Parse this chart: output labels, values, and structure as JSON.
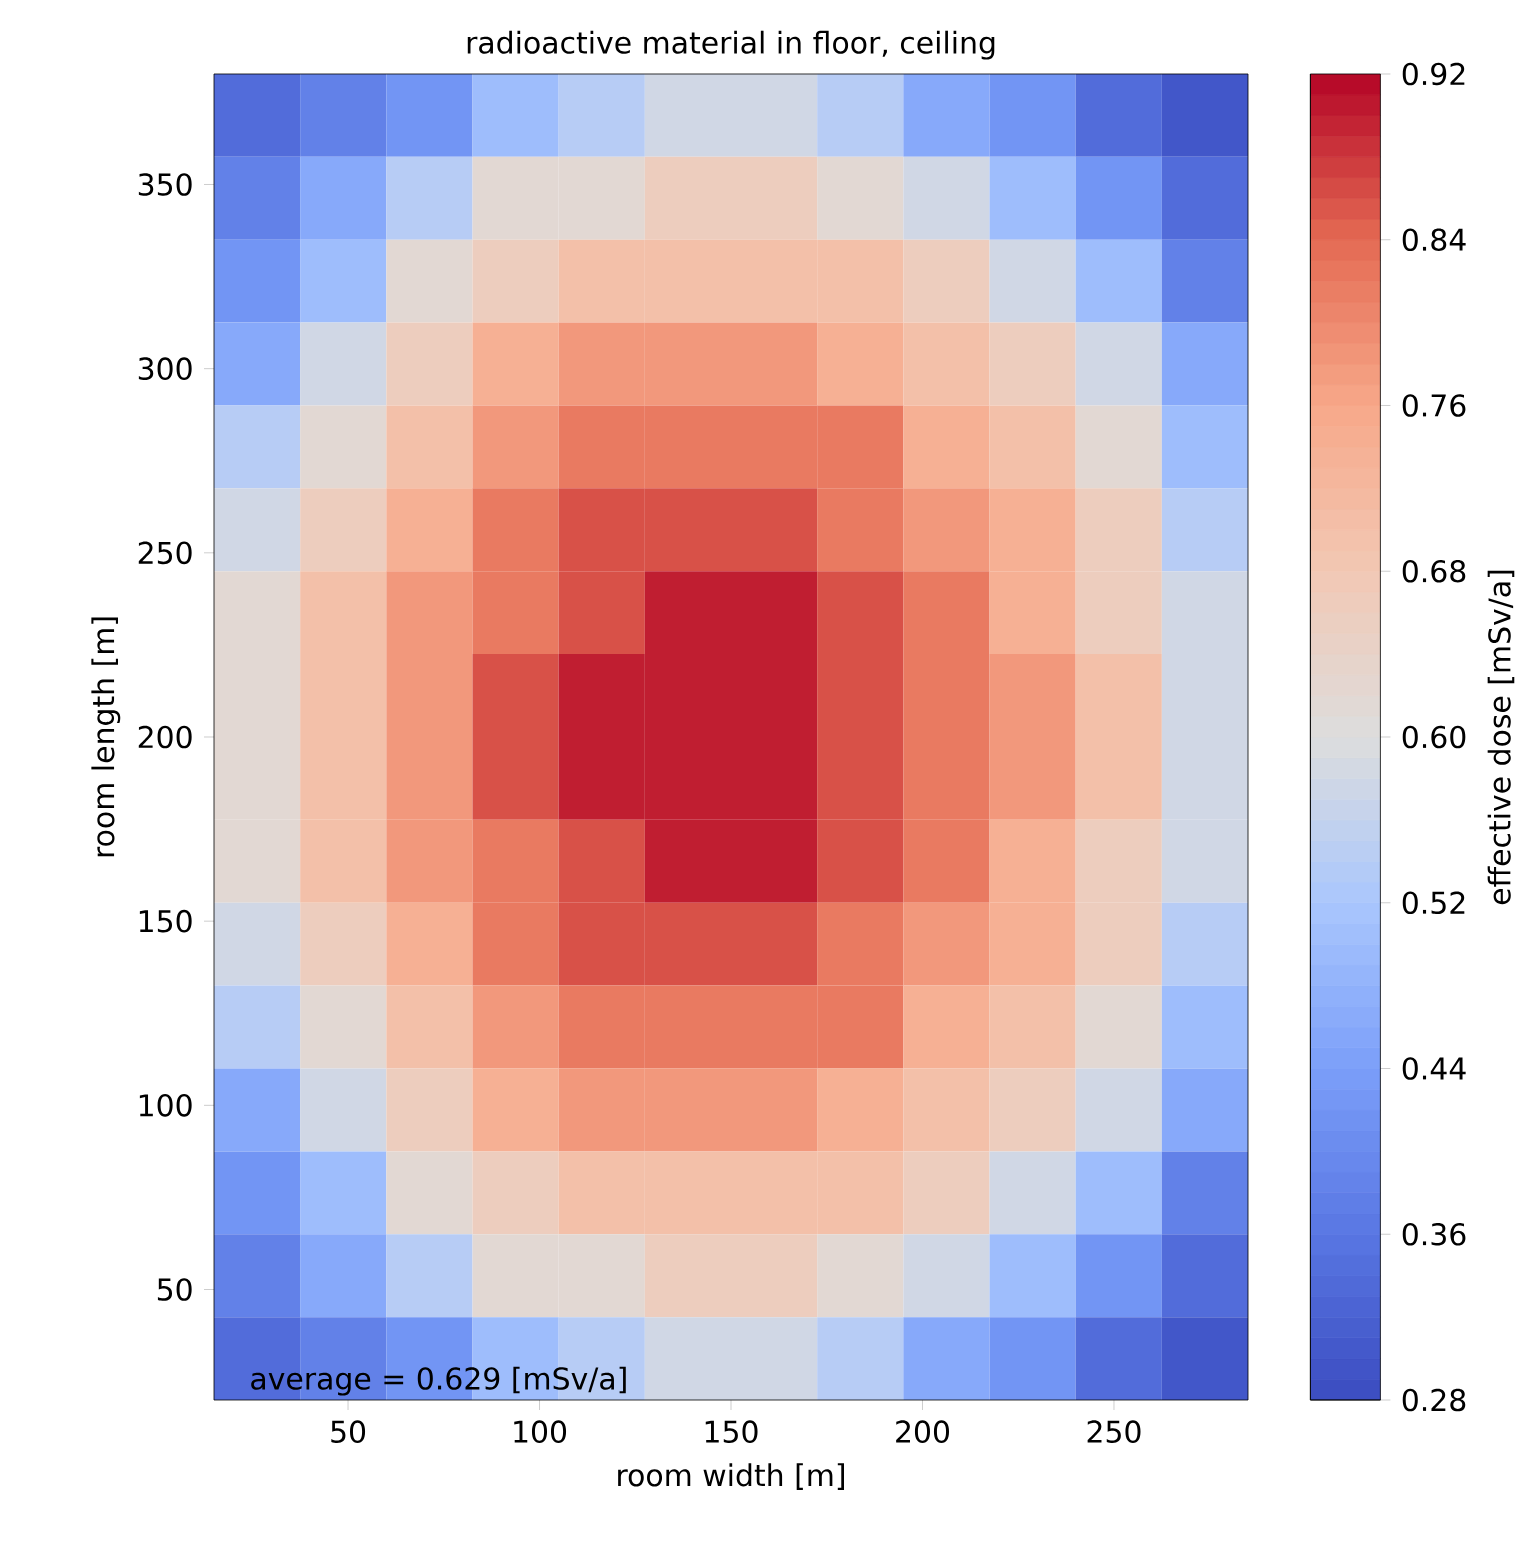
{
  "chart_data": {
    "type": "heatmap",
    "title": "radioactive material in floor, ceiling",
    "xlabel": "room width [m]",
    "ylabel": "room length [m]",
    "clabel": "effective dose [mSv/a]",
    "annotations": [
      "average = 0.629 [mSv/a]"
    ],
    "x": [
      26.25,
      48.75,
      71.25,
      93.75,
      116.25,
      138.75,
      161.25,
      183.75,
      206.25,
      228.75,
      251.25,
      273.75
    ],
    "y": [
      368.75,
      346.25,
      323.75,
      301.25,
      278.75,
      256.25,
      233.75,
      211.25,
      188.75,
      166.25,
      143.75,
      121.25,
      98.75,
      76.25,
      53.75,
      31.25
    ],
    "cells": [
      [
        0.34,
        0.38,
        0.42,
        0.5,
        0.54,
        0.58,
        0.58,
        0.54,
        0.46,
        0.42,
        0.34,
        0.3
      ],
      [
        0.38,
        0.46,
        0.54,
        0.62,
        0.62,
        0.66,
        0.66,
        0.62,
        0.58,
        0.5,
        0.42,
        0.34
      ],
      [
        0.42,
        0.5,
        0.62,
        0.66,
        0.7,
        0.7,
        0.7,
        0.7,
        0.66,
        0.58,
        0.5,
        0.38
      ],
      [
        0.46,
        0.58,
        0.66,
        0.74,
        0.78,
        0.78,
        0.78,
        0.74,
        0.7,
        0.66,
        0.58,
        0.46
      ],
      [
        0.54,
        0.62,
        0.7,
        0.78,
        0.82,
        0.82,
        0.82,
        0.82,
        0.74,
        0.7,
        0.62,
        0.5
      ],
      [
        0.58,
        0.66,
        0.74,
        0.82,
        0.86,
        0.86,
        0.86,
        0.82,
        0.78,
        0.74,
        0.66,
        0.54
      ],
      [
        0.62,
        0.7,
        0.78,
        0.82,
        0.86,
        0.9,
        0.9,
        0.86,
        0.82,
        0.74,
        0.66,
        0.58
      ],
      [
        0.62,
        0.7,
        0.78,
        0.86,
        0.9,
        0.9,
        0.9,
        0.86,
        0.82,
        0.78,
        0.7,
        0.58
      ],
      [
        0.62,
        0.7,
        0.78,
        0.86,
        0.9,
        0.9,
        0.9,
        0.86,
        0.82,
        0.78,
        0.7,
        0.58
      ],
      [
        0.62,
        0.7,
        0.78,
        0.82,
        0.86,
        0.9,
        0.9,
        0.86,
        0.82,
        0.74,
        0.66,
        0.58
      ],
      [
        0.58,
        0.66,
        0.74,
        0.82,
        0.86,
        0.86,
        0.86,
        0.82,
        0.78,
        0.74,
        0.66,
        0.54
      ],
      [
        0.54,
        0.62,
        0.7,
        0.78,
        0.82,
        0.82,
        0.82,
        0.82,
        0.74,
        0.7,
        0.62,
        0.5
      ],
      [
        0.46,
        0.58,
        0.66,
        0.74,
        0.78,
        0.78,
        0.78,
        0.74,
        0.7,
        0.66,
        0.58,
        0.46
      ],
      [
        0.42,
        0.5,
        0.62,
        0.66,
        0.7,
        0.7,
        0.7,
        0.7,
        0.66,
        0.58,
        0.5,
        0.38
      ],
      [
        0.38,
        0.46,
        0.54,
        0.62,
        0.62,
        0.66,
        0.66,
        0.62,
        0.58,
        0.5,
        0.42,
        0.34
      ],
      [
        0.34,
        0.38,
        0.42,
        0.5,
        0.54,
        0.58,
        0.58,
        0.54,
        0.46,
        0.42,
        0.34,
        0.3
      ]
    ],
    "clim": [
      0.28,
      0.92
    ],
    "cticks": [
      0.28,
      0.36,
      0.44,
      0.52,
      {
        "value": 0.6,
        "label": "0.60"
      },
      0.68,
      0.76,
      0.84,
      0.92
    ],
    "xlim": [
      15,
      285
    ],
    "ylim": [
      20,
      380
    ],
    "xticks": [
      50,
      100,
      150,
      200,
      250
    ],
    "yticks": [
      50,
      100,
      150,
      200,
      250,
      300,
      350
    ]
  }
}
